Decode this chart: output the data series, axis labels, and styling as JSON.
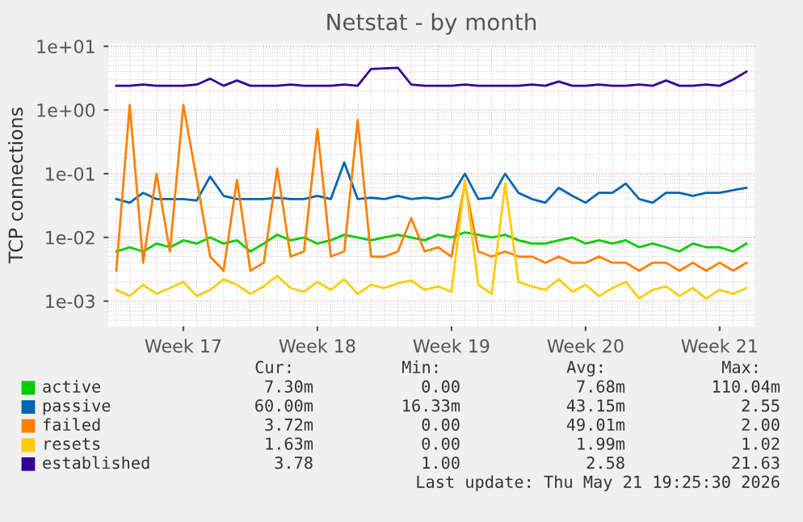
{
  "chart_data": {
    "type": "line",
    "title": "Netstat - by month",
    "ylabel": "TCP connections",
    "log": "y",
    "grid": true,
    "legend": "bottom",
    "categories": [
      null,
      null,
      null,
      null,
      null,
      "Week 17",
      null,
      null,
      null,
      null,
      null,
      null,
      null,
      null,
      null,
      "Week 18",
      null,
      null,
      null,
      null,
      null,
      null,
      null,
      null,
      null,
      "Week 19",
      null,
      null,
      null,
      null,
      null,
      null,
      null,
      null,
      null,
      "Week 20",
      null,
      null,
      null,
      null,
      null,
      null,
      null,
      null,
      null,
      "Week 21",
      null,
      null
    ],
    "ylim": [
      0.0004,
      11
    ],
    "yticks": [
      {
        "value": 0.001,
        "label": "1e-03"
      },
      {
        "value": 0.01,
        "label": "1e-02"
      },
      {
        "value": 0.1,
        "label": "1e-01"
      },
      {
        "value": 1,
        "label": "1e+00"
      },
      {
        "value": 10,
        "label": "1e+01"
      }
    ],
    "series": [
      {
        "name": "active",
        "color": "#00cc00",
        "values": [
          0.006,
          0.007,
          0.006,
          0.008,
          0.007,
          0.009,
          0.008,
          0.01,
          0.008,
          0.009,
          0.006,
          0.008,
          0.011,
          0.009,
          0.01,
          0.008,
          0.009,
          0.011,
          0.01,
          0.009,
          0.01,
          0.011,
          0.01,
          0.009,
          0.011,
          0.01,
          0.012,
          0.011,
          0.01,
          0.011,
          0.009,
          0.008,
          0.008,
          0.009,
          0.01,
          0.008,
          0.009,
          0.008,
          0.009,
          0.007,
          0.008,
          0.007,
          0.006,
          0.008,
          0.007,
          0.007,
          0.006,
          0.008
        ]
      },
      {
        "name": "passive",
        "color": "#0066b3",
        "values": [
          0.04,
          0.035,
          0.05,
          0.04,
          0.04,
          0.04,
          0.038,
          0.09,
          0.045,
          0.04,
          0.04,
          0.04,
          0.042,
          0.04,
          0.04,
          0.045,
          0.04,
          0.15,
          0.04,
          0.042,
          0.04,
          0.045,
          0.04,
          0.042,
          0.04,
          0.045,
          0.1,
          0.04,
          0.042,
          0.1,
          0.05,
          0.04,
          0.035,
          0.06,
          0.045,
          0.035,
          0.05,
          0.05,
          0.07,
          0.04,
          0.035,
          0.05,
          0.05,
          0.045,
          0.05,
          0.05,
          0.055,
          0.06
        ]
      },
      {
        "name": "failed",
        "color": "#ff8000",
        "values": [
          0.003,
          1.2,
          0.004,
          0.1,
          0.006,
          1.2,
          0.08,
          0.005,
          0.003,
          0.08,
          0.003,
          0.004,
          0.12,
          0.005,
          0.006,
          0.5,
          0.005,
          0.006,
          0.7,
          0.005,
          0.005,
          0.006,
          0.02,
          0.006,
          0.007,
          0.005,
          0.07,
          0.006,
          0.005,
          0.006,
          0.005,
          0.005,
          0.004,
          0.005,
          0.004,
          0.004,
          0.005,
          0.004,
          0.004,
          0.003,
          0.004,
          0.004,
          0.003,
          0.004,
          0.003,
          0.004,
          0.003,
          0.004
        ]
      },
      {
        "name": "resets",
        "color": "#ffcc00",
        "values": [
          0.0015,
          0.0012,
          0.0018,
          0.0013,
          0.0016,
          0.002,
          0.0012,
          0.0015,
          0.0022,
          0.0018,
          0.0013,
          0.0017,
          0.0025,
          0.0016,
          0.0014,
          0.002,
          0.0015,
          0.0022,
          0.0013,
          0.0018,
          0.0016,
          0.0019,
          0.0021,
          0.0015,
          0.0017,
          0.0014,
          0.08,
          0.0018,
          0.0013,
          0.07,
          0.002,
          0.0017,
          0.0015,
          0.0022,
          0.0014,
          0.0018,
          0.0012,
          0.0016,
          0.002,
          0.0011,
          0.0015,
          0.0017,
          0.0012,
          0.0016,
          0.0011,
          0.0015,
          0.0013,
          0.0016
        ]
      },
      {
        "name": "established",
        "color": "#330099",
        "values": [
          2.4,
          2.4,
          2.5,
          2.4,
          2.4,
          2.4,
          2.5,
          3.1,
          2.4,
          2.9,
          2.4,
          2.4,
          2.4,
          2.5,
          2.4,
          2.4,
          2.4,
          2.5,
          2.4,
          4.4,
          4.5,
          4.6,
          2.5,
          2.4,
          2.4,
          2.4,
          2.5,
          2.4,
          2.4,
          2.4,
          2.4,
          2.5,
          2.4,
          2.8,
          2.4,
          2.4,
          2.5,
          2.4,
          2.4,
          2.5,
          2.4,
          2.9,
          2.4,
          2.4,
          2.5,
          2.4,
          3.0,
          4.0
        ]
      }
    ],
    "annotations": [
      "Cur:",
      "Min:",
      "Avg:",
      "Max:",
      "7.30m",
      "0.00",
      "7.68m",
      "110.04m",
      "60.00m",
      "16.33m",
      "43.15m",
      "2.55",
      "3.72m",
      "0.00",
      "49.01m",
      "2.00",
      "1.63m",
      "0.00",
      "1.99m",
      "1.02",
      "3.78",
      "1.00",
      "2.58",
      "21.63",
      "Last update: Thu May 21 19:25:30 2026"
    ]
  }
}
